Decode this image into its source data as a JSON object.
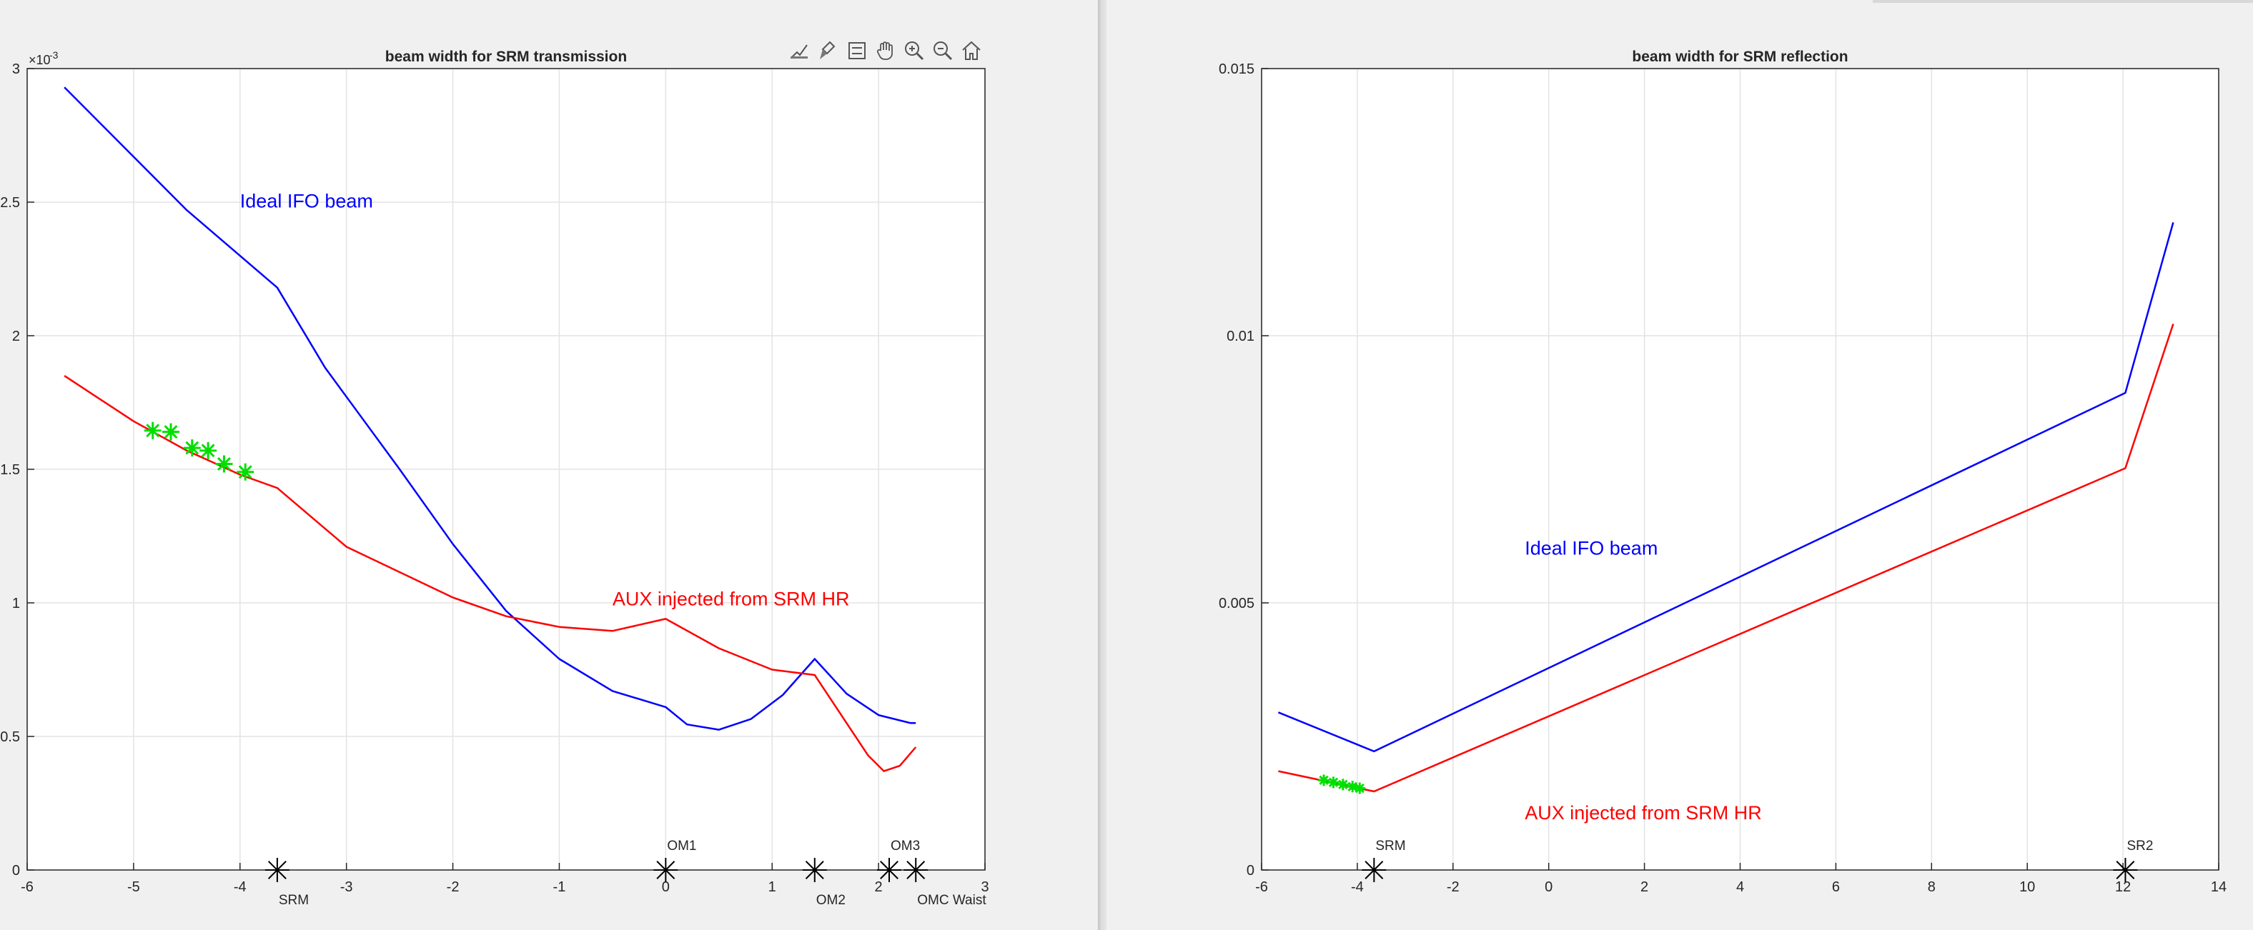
{
  "colors": {
    "ifo": "#0000ff",
    "aux": "#ff0000",
    "marker": "#00e000",
    "optic": "#000000",
    "grid": "#e3e3e3",
    "axis": "#262626"
  },
  "toolbar": {
    "icons": [
      "data-tips-icon",
      "brush-icon",
      "legend-icon",
      "pan-hand-icon",
      "zoom-in-icon",
      "zoom-out-icon",
      "home-icon"
    ]
  },
  "chart_data": [
    {
      "type": "line",
      "title": "beam width for SRM transmission",
      "xlabel": "",
      "ylabel": "",
      "xlim": [
        -6,
        3
      ],
      "ylim": [
        0,
        0.003
      ],
      "y_exponent_label": "×10",
      "y_exponent_power": "-3",
      "xticks": [
        -6,
        -5,
        -4,
        -3,
        -2,
        -1,
        0,
        1,
        2,
        3
      ],
      "xtick_labels": [
        "-6",
        "-5",
        "-4",
        "-3",
        "-2",
        "-1",
        "0",
        "1",
        "2",
        "3"
      ],
      "yticks": [
        0,
        0.0005,
        0.001,
        0.0015,
        0.002,
        0.0025,
        0.003
      ],
      "ytick_labels": [
        "0",
        "0.5",
        "1",
        "1.5",
        "2",
        "2.5",
        "3"
      ],
      "grid": true,
      "series": [
        {
          "name": "Ideal IFO beam",
          "color": "#0000ff",
          "x": [
            -5.65,
            -4.5,
            -3.65,
            -3.2,
            -2.5,
            -2.0,
            -1.5,
            -1.0,
            -0.5,
            0.0,
            0.2,
            0.5,
            0.8,
            1.1,
            1.4,
            1.7,
            2.0,
            2.3,
            2.35
          ],
          "y": [
            0.00293,
            0.00247,
            0.00218,
            0.00188,
            0.0015,
            0.00122,
            0.00097,
            0.00079,
            0.00067,
            0.00061,
            0.000545,
            0.000525,
            0.000565,
            0.000655,
            0.00079,
            0.00066,
            0.00058,
            0.00055,
            0.00055
          ]
        },
        {
          "name": "AUX injected from SRM HR",
          "color": "#ff0000",
          "x": [
            -5.65,
            -5.0,
            -4.5,
            -4.0,
            -3.65,
            -3.0,
            -2.0,
            -1.5,
            -1.0,
            -0.5,
            0.0,
            0.5,
            1.0,
            1.4,
            1.7,
            1.9,
            2.05,
            2.2,
            2.35
          ],
          "y": [
            0.00185,
            0.00168,
            0.00157,
            0.00148,
            0.00143,
            0.00121,
            0.00102,
            0.00095,
            0.00091,
            0.000895,
            0.00094,
            0.00083,
            0.00075,
            0.00073,
            0.00055,
            0.00043,
            0.00037,
            0.00039,
            0.00046
          ]
        }
      ],
      "markers": {
        "name": "green stars",
        "color": "#00e000",
        "x": [
          -4.82,
          -4.65,
          -4.45,
          -4.3,
          -4.15,
          -3.95
        ],
        "y": [
          0.001645,
          0.00164,
          0.00158,
          0.00157,
          0.00152,
          0.00149
        ]
      },
      "optics": [
        {
          "label": "SRM",
          "x": -3.65,
          "label_pos": "below"
        },
        {
          "label": "OM1",
          "x": 0.0,
          "label_pos": "above"
        },
        {
          "label": "OM2",
          "x": 1.4,
          "label_pos": "below"
        },
        {
          "label": "OM3",
          "x": 2.1,
          "label_pos": "above"
        },
        {
          "label": "OMC Waist",
          "x": 2.35,
          "label_pos": "below"
        }
      ],
      "annotations": [
        {
          "text": "Ideal IFO beam",
          "x": -4.0,
          "y": 0.00248,
          "color": "#0000ff"
        },
        {
          "text": "AUX injected from SRM HR",
          "x": -0.5,
          "y": 0.00099,
          "color": "#ff0000"
        }
      ]
    },
    {
      "type": "line",
      "title": "beam width for SRM reflection",
      "xlabel": "",
      "ylabel": "",
      "xlim": [
        -6,
        14
      ],
      "ylim": [
        0,
        0.015
      ],
      "xticks": [
        -6,
        -4,
        -2,
        0,
        2,
        4,
        6,
        8,
        10,
        12,
        14
      ],
      "xtick_labels": [
        "-6",
        "-4",
        "-2",
        "0",
        "2",
        "4",
        "6",
        "8",
        "10",
        "12",
        "14"
      ],
      "yticks": [
        0,
        0.005,
        0.01,
        0.015
      ],
      "ytick_labels": [
        "0",
        "0.005",
        "0.01",
        "0.015"
      ],
      "grid": true,
      "series": [
        {
          "name": "Ideal IFO beam",
          "color": "#0000ff",
          "x": [
            -5.65,
            -3.65,
            12.05,
            13.05
          ],
          "y": [
            0.00295,
            0.00222,
            0.00893,
            0.01212
          ]
        },
        {
          "name": "AUX injected from SRM HR",
          "color": "#ff0000",
          "x": [
            -5.65,
            -3.65,
            12.05,
            13.05
          ],
          "y": [
            0.00185,
            0.00147,
            0.00752,
            0.01022
          ]
        }
      ],
      "markers": {
        "name": "green stars",
        "color": "#00e000",
        "x": [
          -4.7,
          -4.5,
          -4.3,
          -4.1,
          -3.95
        ],
        "y": [
          0.00168,
          0.00164,
          0.0016,
          0.00156,
          0.00153
        ]
      },
      "optics": [
        {
          "label": "SRM",
          "x": -3.65,
          "label_pos": "above"
        },
        {
          "label": "SR2",
          "x": 12.05,
          "label_pos": "above"
        }
      ],
      "annotations": [
        {
          "text": "Ideal IFO beam",
          "x": -0.5,
          "y": 0.0059,
          "color": "#0000ff"
        },
        {
          "text": "AUX injected from SRM HR",
          "x": -0.5,
          "y": 0.00095,
          "color": "#ff0000"
        }
      ]
    }
  ]
}
